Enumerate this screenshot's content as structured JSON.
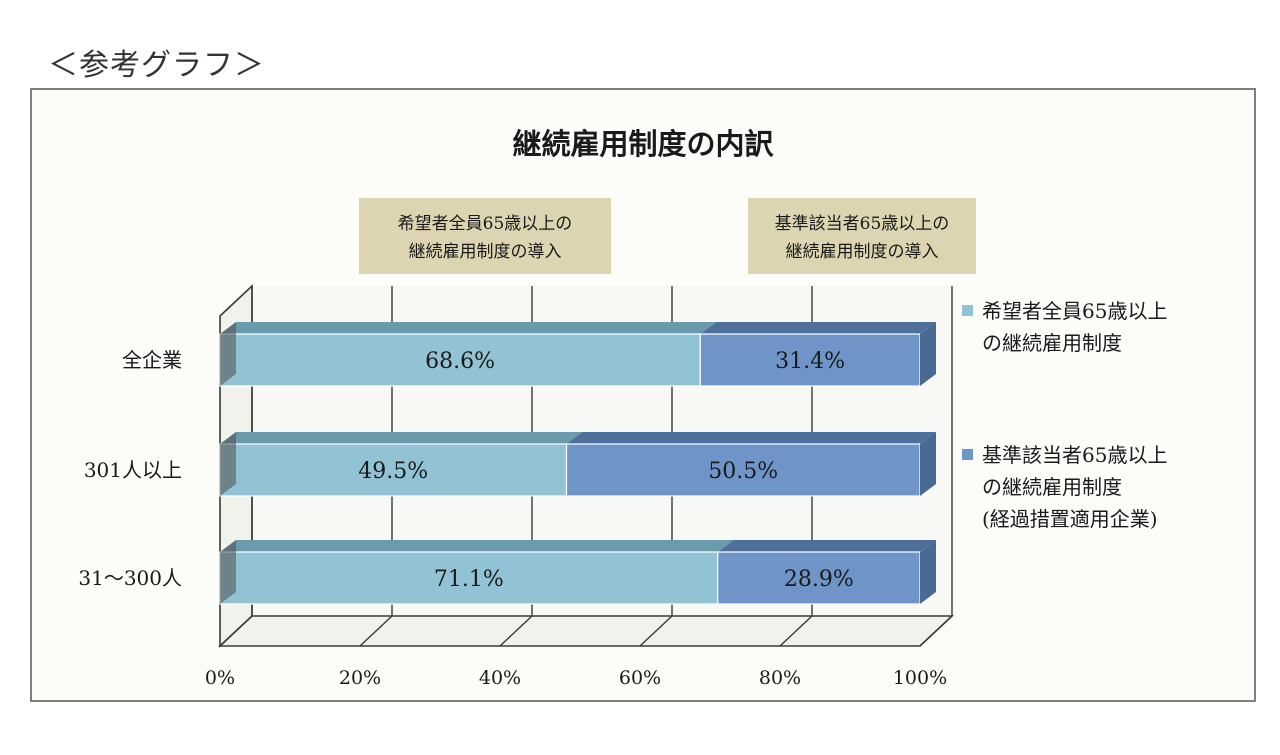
{
  "page": {
    "heading": "＜参考グラフ＞"
  },
  "colors": {
    "series1": "#92c3d4",
    "series1_top": "#6a9aab",
    "series1_side": "#6e9eb0",
    "series2": "#6f95c8",
    "series2_top": "#4d6f99",
    "series2_side": "#4a6a93",
    "annotation_bg": "#ddd5b2",
    "wall": "#f8f8f4",
    "grid": "#3a3a3a"
  },
  "chart_data": {
    "type": "bar",
    "orientation": "horizontal",
    "stacked": "percent",
    "title": "継続雇用制度の内訳",
    "categories": [
      "全企業",
      "301人以上",
      "31～300人"
    ],
    "series": [
      {
        "name": "希望者全員65歳以上の継続雇用制度",
        "legend_lines": [
          "希望者全員65歳以上",
          "の継続雇用制度"
        ],
        "values": [
          68.6,
          49.5,
          71.1
        ],
        "labels": [
          "68.6%",
          "49.5%",
          "71.1%"
        ]
      },
      {
        "name": "基準該当者65歳以上の継続雇用制度(経過措置適用企業)",
        "legend_lines": [
          "基準該当者65歳以上",
          "の継続雇用制度",
          "(経過措置適用企業)"
        ],
        "values": [
          31.4,
          50.5,
          28.9
        ],
        "labels": [
          "31.4%",
          "50.5%",
          "28.9%"
        ]
      }
    ],
    "xlim": [
      0,
      100
    ],
    "xticks": [
      "0%",
      "20%",
      "40%",
      "60%",
      "80%",
      "100%"
    ],
    "annotations": [
      {
        "lines": [
          "希望者全員65歳以上の",
          "継続雇用制度の導入"
        ]
      },
      {
        "lines": [
          "基準該当者65歳以上の",
          "継続雇用制度の導入"
        ]
      }
    ],
    "legend_position": "right",
    "grid": true
  }
}
